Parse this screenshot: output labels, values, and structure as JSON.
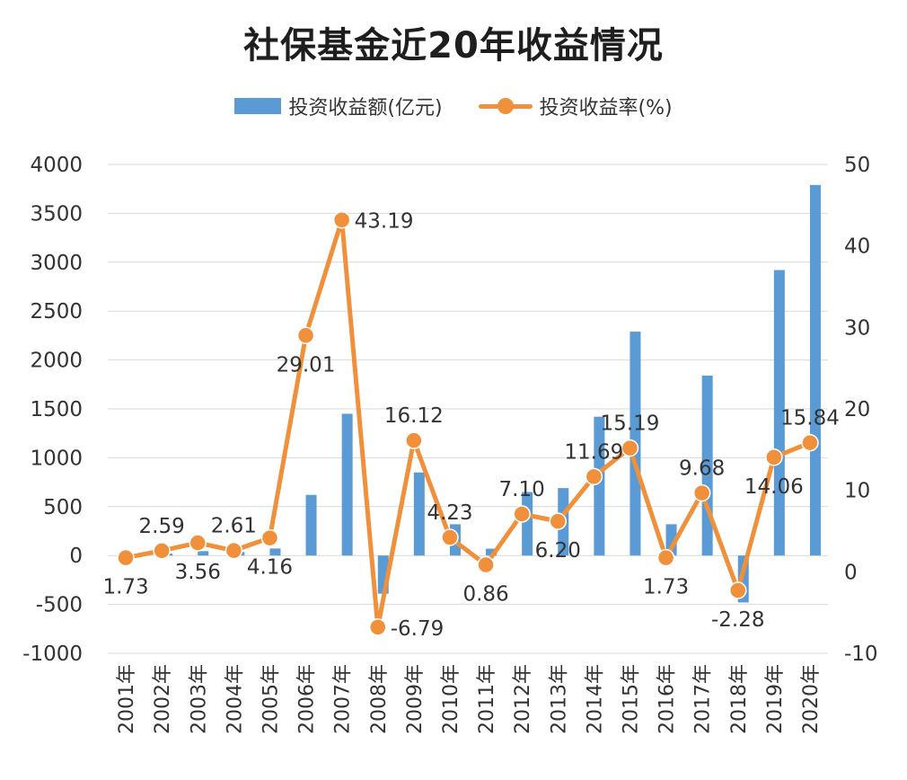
{
  "colors": {
    "bar": "#5b9bd5",
    "line": "#f0903a",
    "grid": "#d9d9d9",
    "text": "#333333"
  },
  "chart_data": {
    "type": "bar",
    "title": "社保基金近20年收益情况",
    "categories": [
      "2001年",
      "2002年",
      "2003年",
      "2004年",
      "2005年",
      "2006年",
      "2007年",
      "2008年",
      "2009年",
      "2010年",
      "2011年",
      "2012年",
      "2013年",
      "2014年",
      "2015年",
      "2016年",
      "2017年",
      "2018年",
      "2019年",
      "2020年"
    ],
    "series": [
      {
        "name": "投资收益额(亿元)",
        "type": "bar",
        "axis": "left",
        "values": [
          7,
          20,
          45,
          36,
          72,
          620,
          1450,
          -390,
          850,
          320,
          70,
          650,
          690,
          1420,
          2290,
          320,
          1840,
          -480,
          2920,
          3790
        ]
      },
      {
        "name": "投资收益率(%)",
        "type": "line",
        "axis": "right",
        "values": [
          1.73,
          2.59,
          3.56,
          2.61,
          4.16,
          29.01,
          43.19,
          -6.79,
          16.12,
          4.23,
          0.86,
          7.1,
          6.2,
          11.69,
          15.19,
          1.73,
          9.68,
          -2.28,
          14.06,
          15.84
        ],
        "labels": [
          "1.73",
          "2.59",
          "3.56",
          "2.61",
          "4.16",
          "29.01",
          "43.19",
          "-6.79",
          "16.12",
          "4.23",
          "0.86",
          "7.10",
          "6.20",
          "11.69",
          "15.19",
          "1.73",
          "9.68",
          "-2.28",
          "14.06",
          "15.84"
        ],
        "label_positions": [
          "below",
          "above",
          "below",
          "above",
          "below",
          "below",
          "right",
          "right",
          "above",
          "above",
          "below",
          "above",
          "below",
          "above",
          "above",
          "below",
          "above",
          "below",
          "below",
          "above"
        ]
      }
    ],
    "y_left": {
      "lim": [
        -1000,
        4000
      ],
      "ticks": [
        -1000,
        -500,
        0,
        500,
        1000,
        1500,
        2000,
        2500,
        3000,
        3500,
        4000
      ]
    },
    "y_right": {
      "lim": [
        -10,
        50
      ],
      "ticks": [
        -10,
        0,
        10,
        20,
        30,
        40,
        50
      ]
    },
    "grid": true,
    "legend": "top-center"
  }
}
